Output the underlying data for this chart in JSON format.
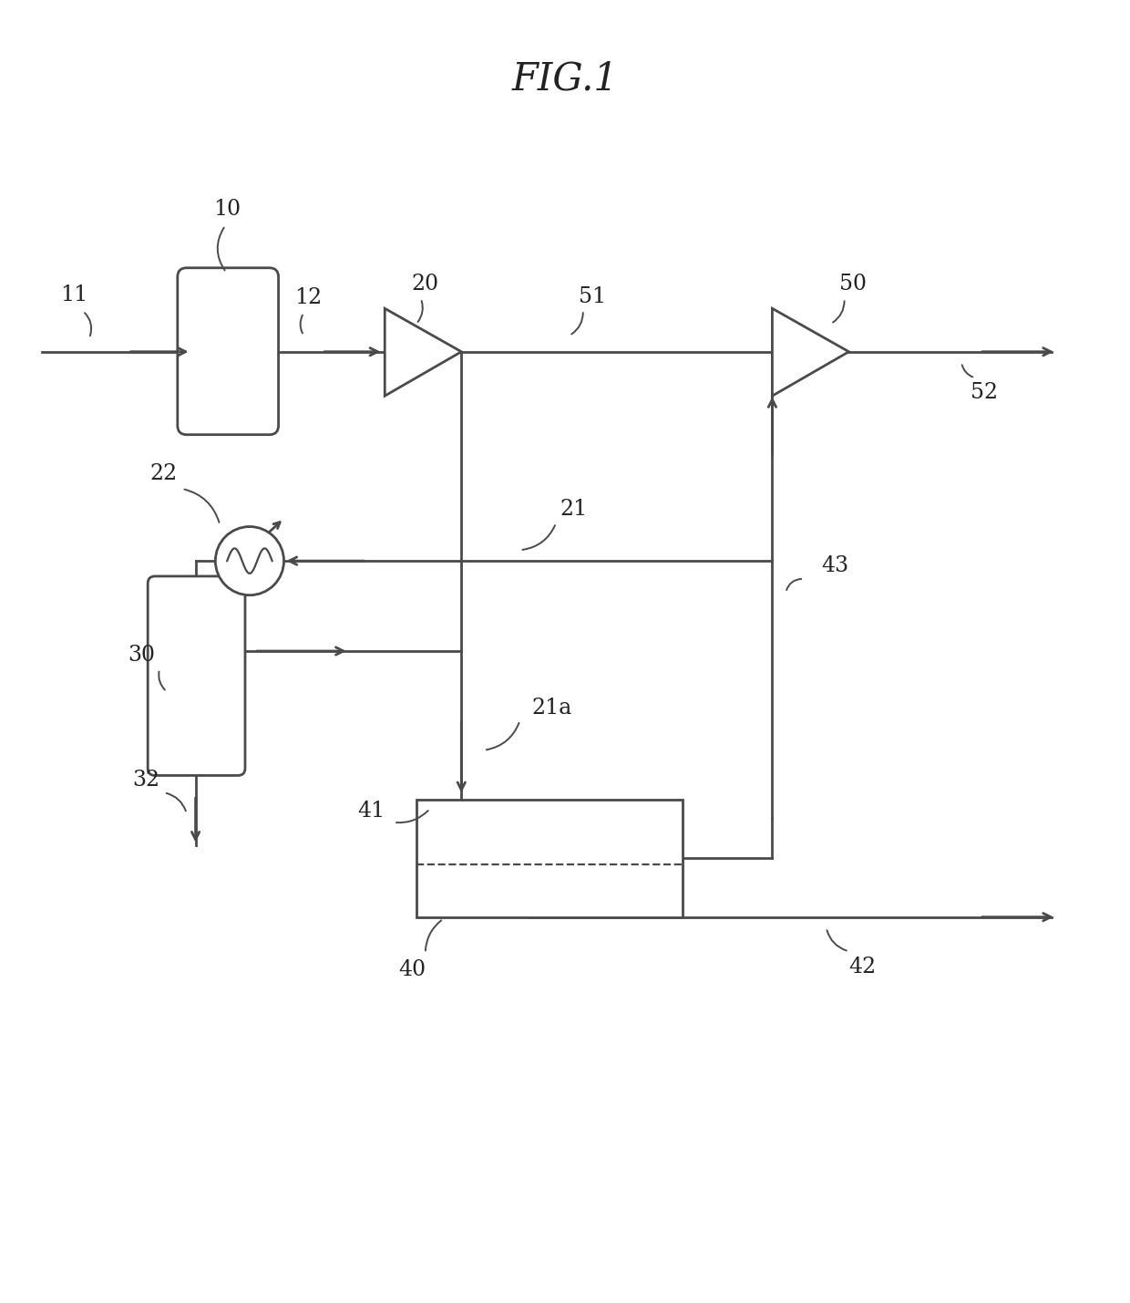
{
  "title": "FIG.1",
  "bg_color": "#ffffff",
  "line_color": "#4a4a4a",
  "lw": 2.0,
  "figsize": [
    12.4,
    14.29
  ],
  "dpi": 100
}
